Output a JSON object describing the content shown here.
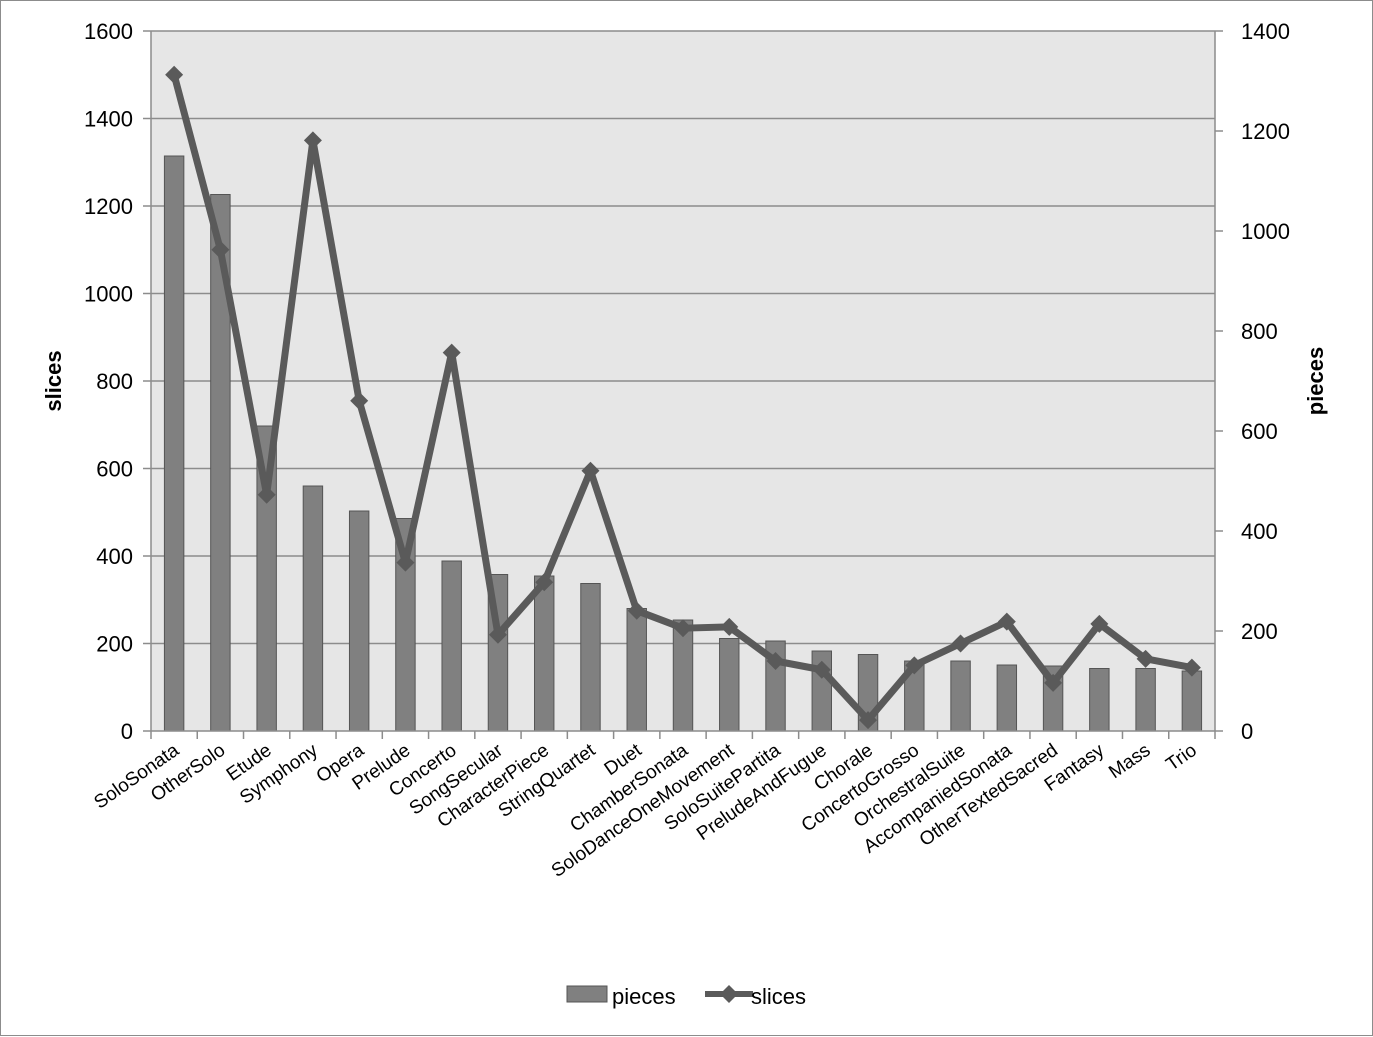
{
  "chart_data": {
    "type": "bar",
    "title": "",
    "xlabel": "",
    "categories": [
      "SoloSonata",
      "OtherSolo",
      "Etude",
      "Symphony",
      "Opera",
      "Prelude",
      "Concerto",
      "SongSecular",
      "CharacterPiece",
      "StringQuartet",
      "Duet",
      "ChamberSonata",
      "SoloDanceOneMovement",
      "SoloSuitePartita",
      "PreludeAndFugue",
      "Chorale",
      "ConcertoGrosso",
      "OrchestralSuite",
      "AccompaniedSonata",
      "OtherTextedSacred",
      "Fantasy",
      "Mass",
      "Trio"
    ],
    "series": [
      {
        "name": "pieces",
        "type": "bar",
        "axis": "right",
        "color": "#808080",
        "values": [
          1150,
          1073,
          610,
          490,
          440,
          425,
          340,
          313,
          310,
          295,
          245,
          222,
          185,
          180,
          160,
          153,
          140,
          140,
          132,
          130,
          125,
          125,
          120
        ]
      },
      {
        "name": "slices",
        "type": "line",
        "axis": "left",
        "color": "#5a5a5a",
        "marker": "diamond",
        "values": [
          1500,
          1100,
          540,
          1350,
          755,
          385,
          865,
          220,
          340,
          595,
          275,
          235,
          238,
          160,
          140,
          25,
          150,
          200,
          250,
          110,
          245,
          165,
          145
        ]
      }
    ],
    "y_left": {
      "label": "slices",
      "lim": [
        0,
        1600
      ],
      "ticks": [
        "0",
        "200",
        "400",
        "600",
        "800",
        "1000",
        "1200",
        "1400",
        "1600"
      ]
    },
    "y_right": {
      "label": "pieces",
      "lim": [
        0,
        1400
      ],
      "ticks": [
        "0",
        "200",
        "400",
        "600",
        "800",
        "1000",
        "1200",
        "1400"
      ]
    },
    "grid": true,
    "plot_background": "#e6e6e6",
    "legend": {
      "position": "bottom",
      "entries": [
        "pieces",
        "slices"
      ]
    }
  }
}
